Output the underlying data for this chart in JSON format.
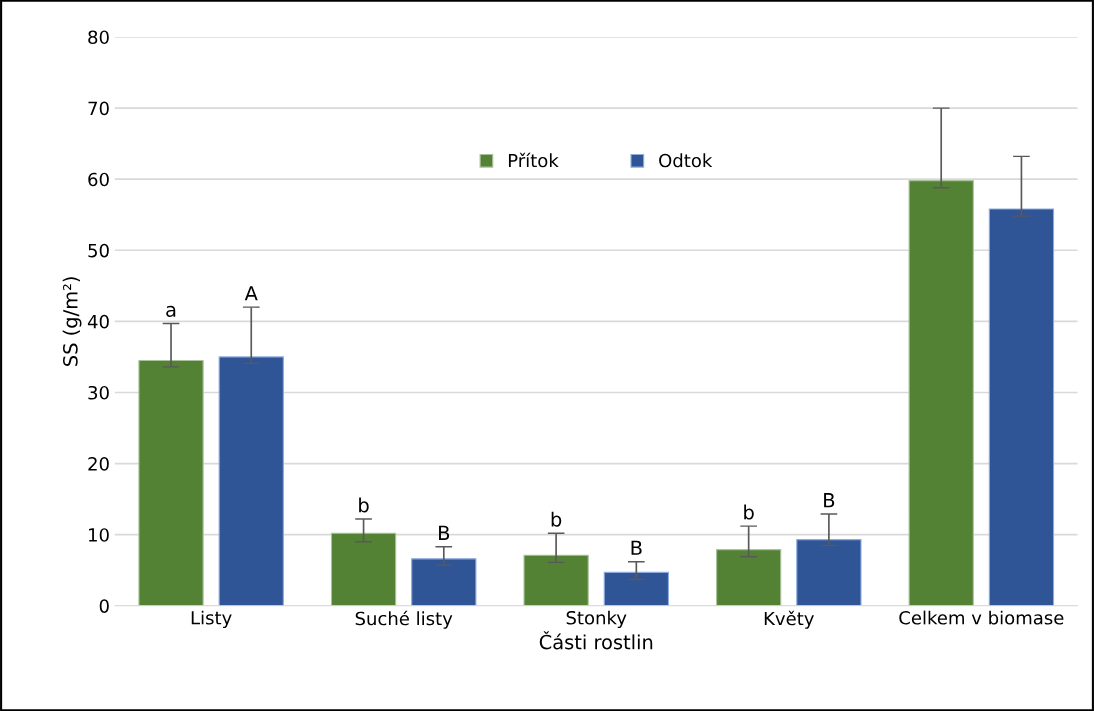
{
  "chart_data": {
    "type": "bar",
    "xlabel": "Části rostlin",
    "ylabel": "SS (g/m²)",
    "categories": [
      "Listy",
      "Suché listy",
      "Stonky",
      "Květy",
      "Celkem v biomase"
    ],
    "series": [
      {
        "name": "Přítok",
        "color": "#548235",
        "values": [
          34.5,
          10.2,
          7.1,
          7.9,
          59.8
        ],
        "errors": [
          [
            33.6,
            39.7
          ],
          [
            9.0,
            12.2
          ],
          [
            6.1,
            10.2
          ],
          [
            6.9,
            11.2
          ],
          [
            58.8,
            70.0
          ]
        ]
      },
      {
        "name": "Odtok",
        "color": "#2f5597",
        "values": [
          35.0,
          6.6,
          4.7,
          9.3,
          55.8
        ],
        "errors": [
          [
            34.1,
            42.0
          ],
          [
            5.7,
            8.3
          ],
          [
            3.7,
            6.2
          ],
          [
            8.5,
            12.9
          ],
          [
            54.8,
            63.2
          ]
        ]
      }
    ],
    "annotations": [
      "a",
      "A",
      "b",
      "B",
      "b",
      "B",
      "b",
      "B"
    ],
    "ylim": [
      0,
      80
    ],
    "yticks": [
      0,
      10,
      20,
      30,
      40,
      50,
      60,
      70,
      80
    ],
    "grid": "y",
    "legend": "top"
  }
}
